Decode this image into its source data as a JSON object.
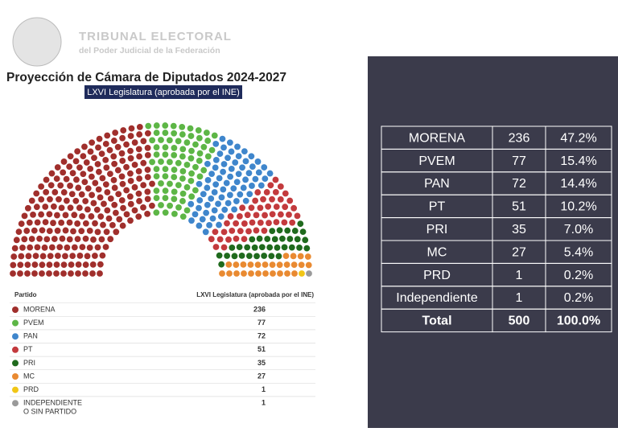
{
  "header": {
    "title": "TRIBUNAL ELECTORAL",
    "subtitle": "del Poder Judicial de la Federación"
  },
  "chart_data": {
    "type": "parliament",
    "title": "Proyección de Cámara de Diputados 2024-2027",
    "subtitle": "LXVI Legislatura (aprobada por el INE)",
    "legend_header": [
      "Partido",
      "LXVI Legislatura (aprobada por el INE)"
    ],
    "series": [
      {
        "name": "MORENA",
        "color": "#a02f2c",
        "values": [
          236
        ]
      },
      {
        "name": "PVEM",
        "color": "#5db646",
        "values": [
          77
        ]
      },
      {
        "name": "PAN",
        "color": "#3f86cc",
        "values": [
          72
        ]
      },
      {
        "name": "PT",
        "color": "#c33a3d",
        "values": [
          51
        ]
      },
      {
        "name": "PRI",
        "color": "#1f6a1d",
        "values": [
          35
        ]
      },
      {
        "name": "MC",
        "color": "#e98a31",
        "values": [
          27
        ]
      },
      {
        "name": "PRD",
        "color": "#f1c616",
        "values": [
          1
        ]
      },
      {
        "name": "INDEPENDIENTE O SIN PARTIDO",
        "color": "#9a9a9a",
        "values": [
          1
        ]
      }
    ]
  },
  "table": {
    "rows": [
      [
        "MORENA",
        "236",
        "47.2%"
      ],
      [
        "PVEM",
        "77",
        "15.4%"
      ],
      [
        "PAN",
        "72",
        "14.4%"
      ],
      [
        "PT",
        "51",
        "10.2%"
      ],
      [
        "PRI",
        "35",
        "7.0%"
      ],
      [
        "MC",
        "27",
        "5.4%"
      ],
      [
        "PRD",
        "1",
        "0.2%"
      ],
      [
        "Independiente",
        "1",
        "0.2%"
      ],
      [
        "Total",
        "500",
        "100.0%"
      ]
    ]
  }
}
